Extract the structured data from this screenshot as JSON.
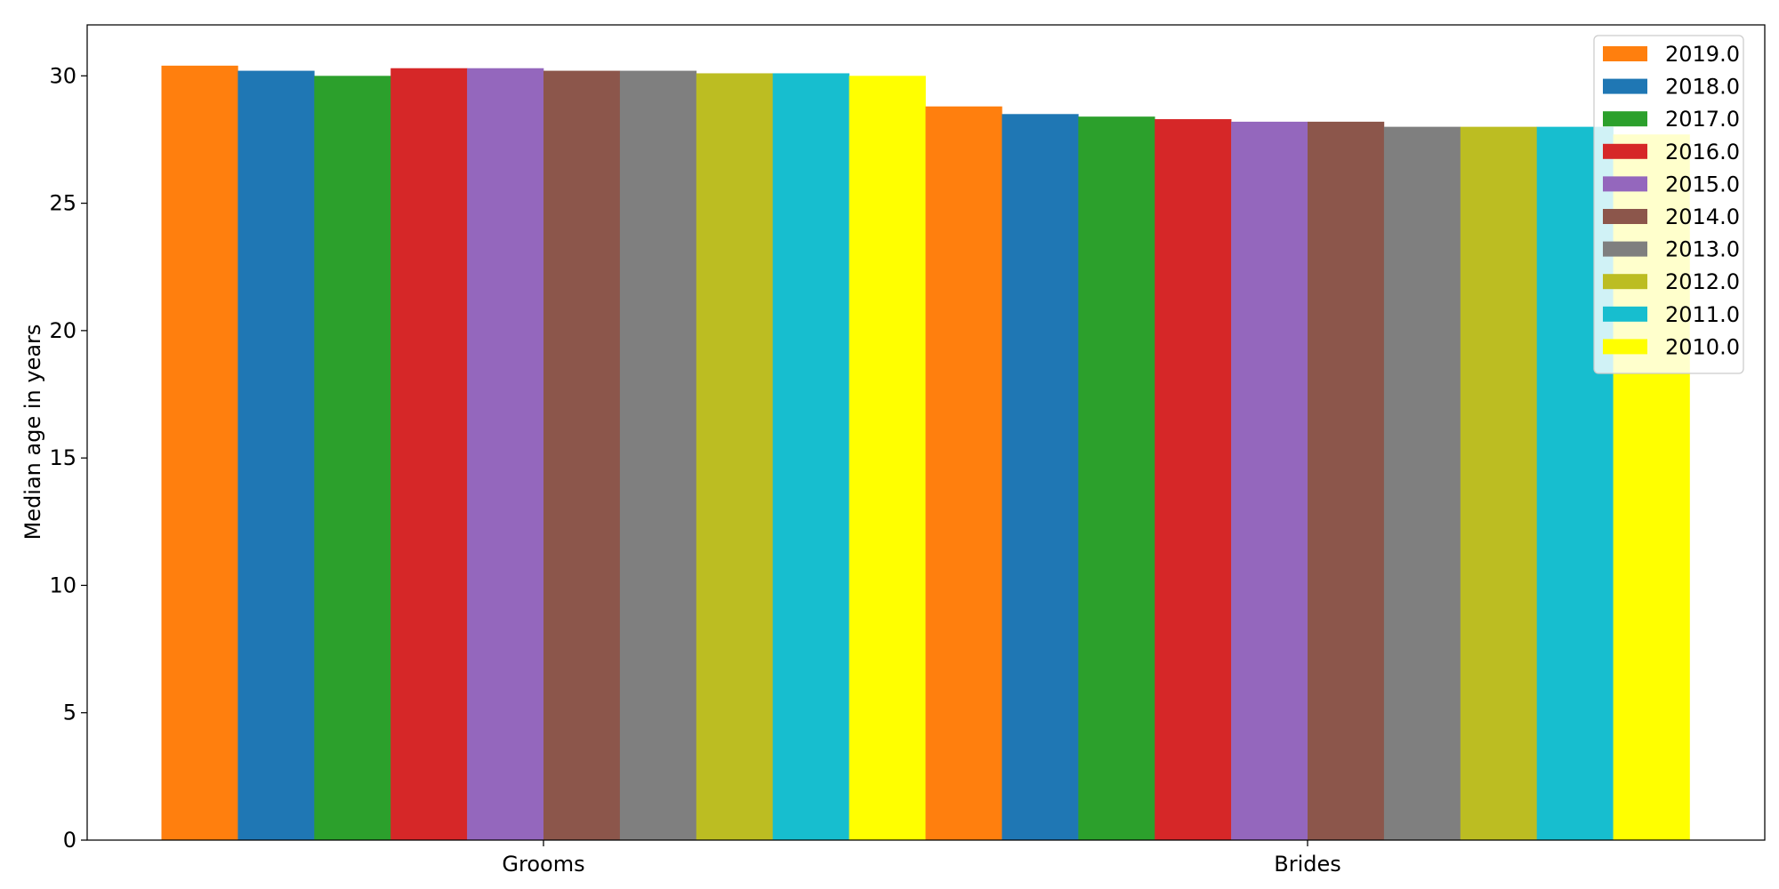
{
  "chart_data": {
    "type": "bar",
    "categories": [
      "Grooms",
      "Brides"
    ],
    "ylabel": "Median age in years",
    "xlabel": "",
    "ylim": [
      0,
      32
    ],
    "yticks": [
      0,
      5,
      10,
      15,
      20,
      25,
      30
    ],
    "grid": false,
    "legend_position": "top-right",
    "series": [
      {
        "name": "2019.0",
        "color": "#ff7f0e",
        "values": [
          30.4,
          28.8
        ]
      },
      {
        "name": "2018.0",
        "color": "#1f77b4",
        "values": [
          30.2,
          28.5
        ]
      },
      {
        "name": "2017.0",
        "color": "#2ca02c",
        "values": [
          30.0,
          28.4
        ]
      },
      {
        "name": "2016.0",
        "color": "#d62728",
        "values": [
          30.3,
          28.3
        ]
      },
      {
        "name": "2015.0",
        "color": "#9467bd",
        "values": [
          30.3,
          28.2
        ]
      },
      {
        "name": "2014.0",
        "color": "#8c564b",
        "values": [
          30.2,
          28.2
        ]
      },
      {
        "name": "2013.0",
        "color": "#7f7f7f",
        "values": [
          30.2,
          28.0
        ]
      },
      {
        "name": "2012.0",
        "color": "#bcbd22",
        "values": [
          30.1,
          28.0
        ]
      },
      {
        "name": "2011.0",
        "color": "#17becf",
        "values": [
          30.1,
          28.0
        ]
      },
      {
        "name": "2010.0",
        "color": "#ffff00",
        "values": [
          30.0,
          27.7
        ]
      }
    ]
  }
}
